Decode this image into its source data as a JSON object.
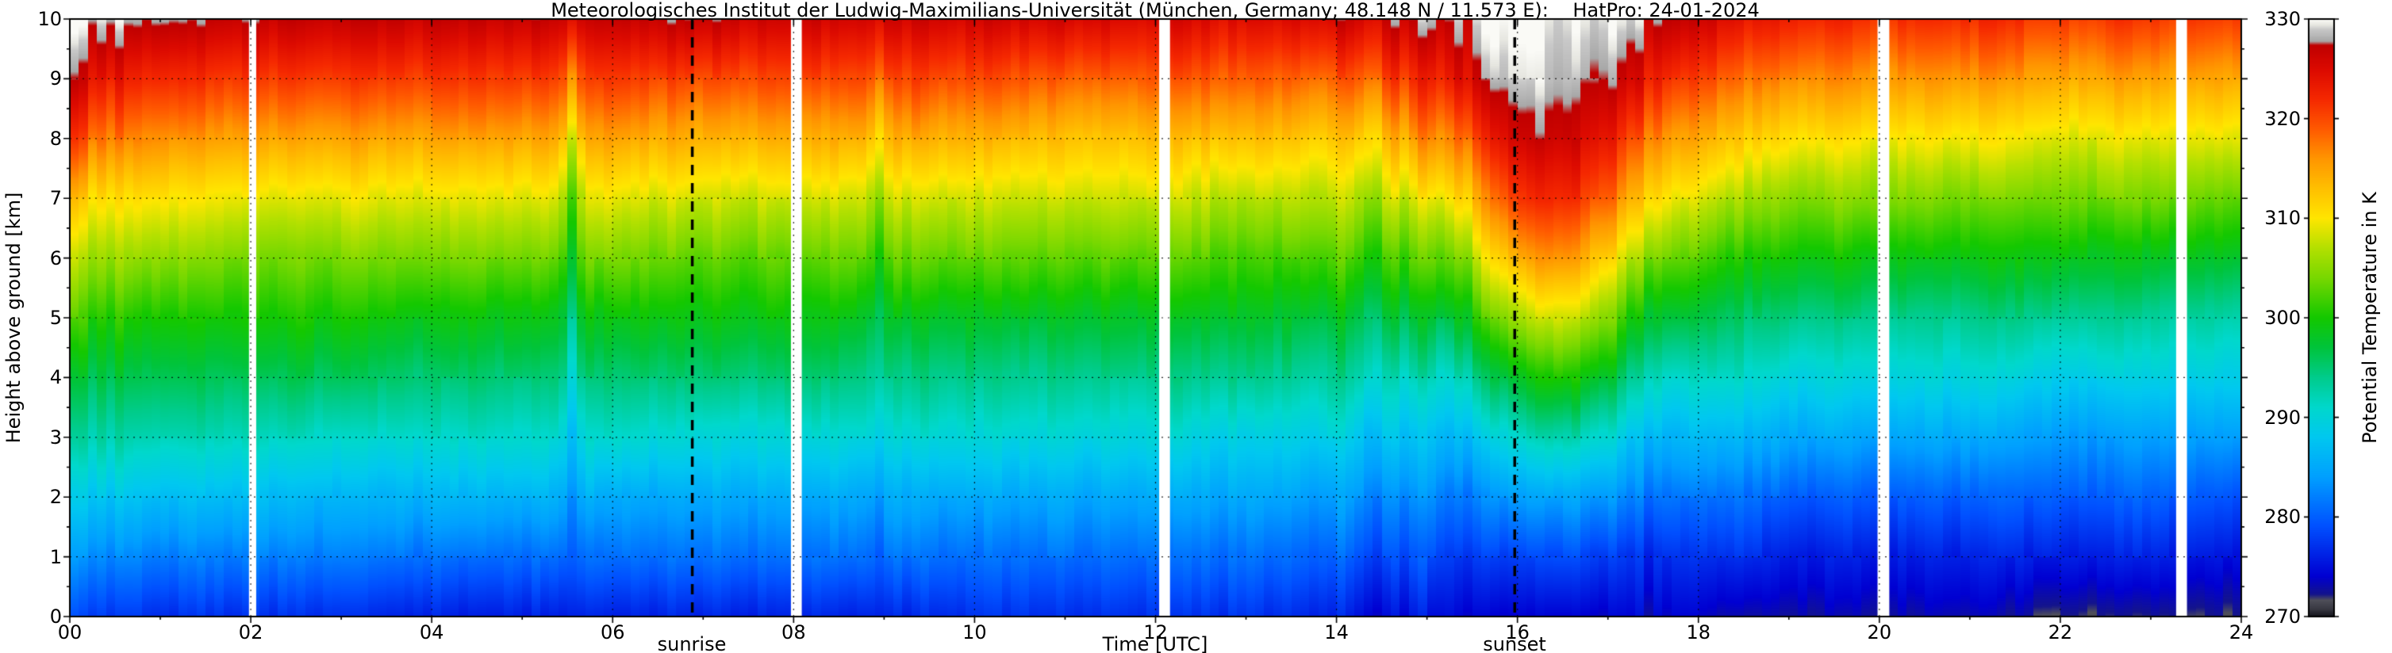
{
  "chart_data": {
    "type": "heatmap",
    "title": "Meteorologisches Institut der Ludwig-Maximilians-Universität (München, Germany; 48.148 N / 11.573 E):    HatPro: 24-01-2024",
    "xlabel": "Time [UTC]",
    "ylabel": "Height above ground [km]",
    "x_range_hours": [
      0,
      24
    ],
    "y_range_km": [
      0,
      10
    ],
    "grid": "dotted",
    "x_ticks": [
      {
        "hour": 0,
        "label": "00"
      },
      {
        "hour": 2,
        "label": "02"
      },
      {
        "hour": 4,
        "label": "04"
      },
      {
        "hour": 6,
        "label": "06"
      },
      {
        "hour": 8,
        "label": "08"
      },
      {
        "hour": 10,
        "label": "10"
      },
      {
        "hour": 12,
        "label": "12"
      },
      {
        "hour": 14,
        "label": "14"
      },
      {
        "hour": 16,
        "label": "16"
      },
      {
        "hour": 18,
        "label": "18"
      },
      {
        "hour": 20,
        "label": "20"
      },
      {
        "hour": 22,
        "label": "22"
      },
      {
        "hour": 24,
        "label": "24"
      }
    ],
    "y_ticks": [
      0,
      1,
      2,
      3,
      4,
      5,
      6,
      7,
      8,
      9,
      10
    ],
    "colorbar": {
      "label": "Potential Temperature in K",
      "min": 270,
      "max": 330,
      "ticks": [
        330,
        320,
        310,
        300,
        290,
        280,
        270
      ],
      "stops": [
        [
          270.0,
          "#16161e"
        ],
        [
          270.8,
          "#3c3c46"
        ],
        [
          271.6,
          "#50505a"
        ],
        [
          272.2,
          "#14148c"
        ],
        [
          274.0,
          "#0000d2"
        ],
        [
          279.0,
          "#0050ff"
        ],
        [
          284.0,
          "#00a0ff"
        ],
        [
          288.0,
          "#00c8f0"
        ],
        [
          291.0,
          "#00d8cc"
        ],
        [
          294.0,
          "#00cc8c"
        ],
        [
          297.0,
          "#00c43c"
        ],
        [
          300.0,
          "#14c800"
        ],
        [
          304.0,
          "#78d800"
        ],
        [
          307.0,
          "#b4e000"
        ],
        [
          310.0,
          "#ffe600"
        ],
        [
          313.0,
          "#ffc000"
        ],
        [
          316.0,
          "#ff9600"
        ],
        [
          319.0,
          "#ff5a00"
        ],
        [
          322.0,
          "#f52800"
        ],
        [
          325.0,
          "#dc0a00"
        ],
        [
          327.4,
          "#c00000"
        ],
        [
          327.8,
          "#a8a8a8"
        ],
        [
          329.0,
          "#c8c8c8"
        ],
        [
          329.4,
          "#e6e6e0"
        ],
        [
          330.0,
          "#fafaf6"
        ]
      ]
    },
    "sun": {
      "sunrise_utc": 6.88,
      "sunset_utc": 15.97,
      "sunrise_label": "sunrise",
      "sunset_label": "sunset"
    },
    "data_gaps_hours": [
      [
        1.98,
        2.06
      ],
      [
        7.97,
        8.09
      ],
      [
        12.04,
        12.16
      ],
      [
        19.98,
        20.11
      ],
      [
        23.28,
        23.4
      ]
    ],
    "heights_km": [
      0,
      1,
      2,
      3,
      4,
      5,
      6,
      7,
      8,
      9,
      10
    ],
    "times_hours": [
      0,
      0.3,
      1,
      2,
      3,
      4,
      5,
      5.4,
      5.55,
      5.7,
      6,
      7,
      8,
      8.8,
      8.95,
      9.1,
      10,
      11,
      12,
      13,
      14,
      14.3,
      14.6,
      15,
      15.3,
      15.7,
      16,
      16.5,
      17,
      17.3,
      17.8,
      18.5,
      19,
      20,
      21,
      22,
      23,
      24
    ],
    "potential_temperature_K": [
      [
        278,
        283,
        288,
        293,
        297,
        302,
        307,
        313,
        321,
        327,
        330
      ],
      [
        278,
        283,
        288,
        293,
        297,
        301,
        306,
        311,
        318,
        324,
        329
      ],
      [
        277,
        282,
        287,
        292,
        296,
        300,
        305,
        310,
        316,
        322,
        328
      ],
      [
        277,
        282,
        287,
        292,
        296,
        300,
        304,
        309,
        315,
        321,
        327
      ],
      [
        277,
        282,
        286,
        291,
        296,
        300,
        304,
        309,
        315,
        321,
        327
      ],
      [
        276,
        281,
        286,
        291,
        295,
        299,
        304,
        309,
        315,
        321,
        327
      ],
      [
        276,
        281,
        286,
        291,
        295,
        299,
        304,
        309,
        315,
        321,
        327
      ],
      [
        276,
        281,
        286,
        291,
        295,
        299,
        304,
        309,
        315,
        321,
        327
      ],
      [
        276,
        280,
        283,
        287,
        291,
        294,
        298,
        302,
        308,
        316,
        325
      ],
      [
        276,
        281,
        286,
        291,
        295,
        299,
        304,
        309,
        315,
        321,
        327
      ],
      [
        276,
        281,
        285,
        291,
        295,
        299,
        304,
        309,
        315,
        321,
        327
      ],
      [
        276,
        281,
        285,
        290,
        295,
        299,
        303,
        308,
        314,
        320,
        327
      ],
      [
        276,
        281,
        285,
        290,
        295,
        299,
        303,
        308,
        314,
        320,
        326
      ],
      [
        276,
        281,
        285,
        290,
        294,
        298,
        303,
        308,
        314,
        320,
        326
      ],
      [
        276,
        280,
        284,
        289,
        293,
        296,
        300,
        305,
        311,
        318,
        325
      ],
      [
        276,
        281,
        285,
        290,
        294,
        298,
        303,
        308,
        314,
        320,
        326
      ],
      [
        277,
        281,
        285,
        290,
        294,
        298,
        303,
        308,
        314,
        320,
        326
      ],
      [
        277,
        281,
        285,
        290,
        294,
        298,
        303,
        308,
        313,
        319,
        326
      ],
      [
        277,
        281,
        285,
        290,
        294,
        298,
        303,
        308,
        313,
        319,
        325
      ],
      [
        277,
        281,
        285,
        289,
        294,
        298,
        302,
        307,
        313,
        319,
        325
      ],
      [
        276,
        280,
        284,
        289,
        293,
        297,
        302,
        307,
        312,
        318,
        325
      ],
      [
        275,
        279,
        283,
        287,
        292,
        296,
        301,
        306,
        312,
        319,
        326
      ],
      [
        275,
        279,
        283,
        288,
        292,
        297,
        302,
        308,
        314,
        321,
        327
      ],
      [
        275,
        279,
        283,
        287,
        292,
        297,
        303,
        309,
        316,
        322,
        328
      ],
      [
        275,
        278,
        282,
        287,
        292,
        298,
        304,
        311,
        318,
        325,
        329
      ],
      [
        274,
        278,
        283,
        289,
        296,
        303,
        310,
        317,
        323,
        328,
        330
      ],
      [
        274,
        278,
        284,
        291,
        298,
        306,
        314,
        321,
        326,
        329,
        330
      ],
      [
        274,
        279,
        285,
        293,
        301,
        309,
        317,
        323,
        327,
        329,
        330
      ],
      [
        274,
        278,
        284,
        291,
        298,
        305,
        312,
        319,
        324,
        328,
        330
      ],
      [
        274,
        277,
        282,
        287,
        293,
        299,
        306,
        313,
        319,
        325,
        329
      ],
      [
        274,
        277,
        281,
        286,
        291,
        297,
        303,
        309,
        315,
        321,
        327
      ],
      [
        273,
        277,
        281,
        286,
        291,
        295,
        300,
        306,
        312,
        318,
        324
      ],
      [
        273,
        276,
        280,
        285,
        290,
        295,
        300,
        305,
        311,
        317,
        323
      ],
      [
        273,
        276,
        280,
        285,
        290,
        294,
        299,
        305,
        310,
        316,
        322
      ],
      [
        273,
        276,
        280,
        285,
        290,
        294,
        299,
        304,
        310,
        316,
        322
      ],
      [
        272,
        276,
        280,
        284,
        289,
        294,
        299,
        304,
        309,
        315,
        321
      ],
      [
        272,
        276,
        280,
        284,
        289,
        293,
        298,
        304,
        309,
        315,
        321
      ],
      [
        272,
        275,
        279,
        284,
        289,
        293,
        298,
        303,
        309,
        315,
        321
      ]
    ]
  }
}
